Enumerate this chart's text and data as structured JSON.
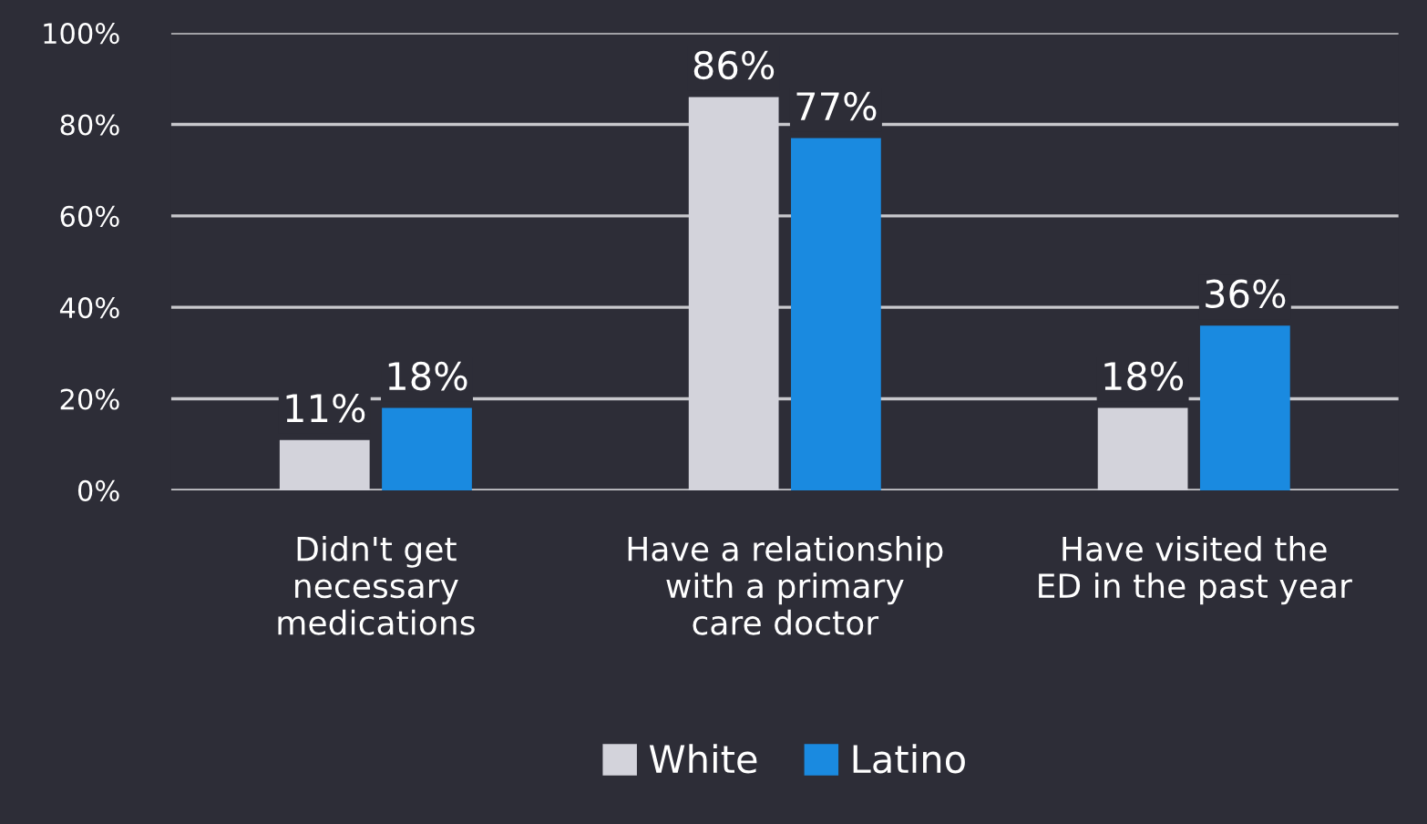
{
  "chart_data": {
    "type": "bar",
    "categories": [
      "Didn't get\nnecessary\nmedications",
      "Have a relationship\nwith a primary\ncare doctor",
      "Have visited the\nED in the past year"
    ],
    "series": [
      {
        "name": "White",
        "color": "#d3d3db",
        "values": [
          11,
          86,
          18
        ],
        "value_labels": [
          "11%",
          "86%",
          "18%"
        ]
      },
      {
        "name": "Latino",
        "color": "#1a8ae0",
        "values": [
          18,
          77,
          36
        ],
        "value_labels": [
          "18%",
          "77%",
          "36%"
        ]
      }
    ],
    "ylim": [
      0,
      100
    ],
    "yticks": [
      {
        "value": 0,
        "label": "0%"
      },
      {
        "value": 20,
        "label": "20%"
      },
      {
        "value": 40,
        "label": "40%"
      },
      {
        "value": 60,
        "label": "60%"
      },
      {
        "value": 80,
        "label": "80%"
      },
      {
        "value": 100,
        "label": "100%"
      }
    ],
    "grid": "y",
    "legend": "bottom"
  }
}
